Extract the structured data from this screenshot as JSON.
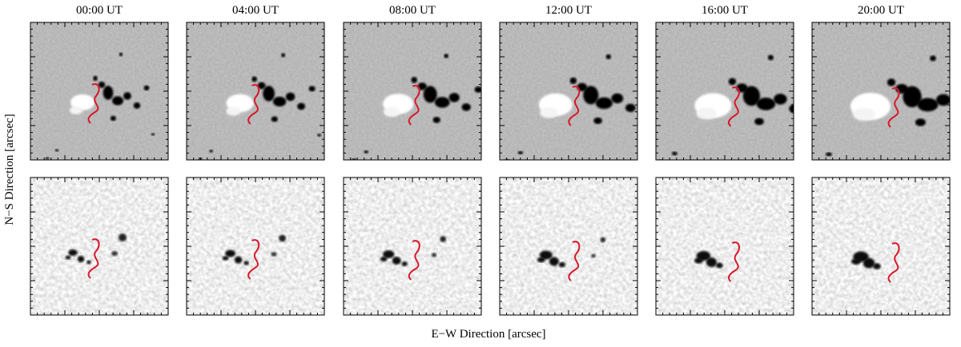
{
  "titles": [
    "00:00 UT",
    "04:00 UT",
    "08:00 UT",
    "12:00 UT",
    "16:00 UT",
    "20:00 UT"
  ],
  "x_label": "E−W Direction   [arcsec]",
  "y_label": "N−S Direction   [arcsec]"
}
